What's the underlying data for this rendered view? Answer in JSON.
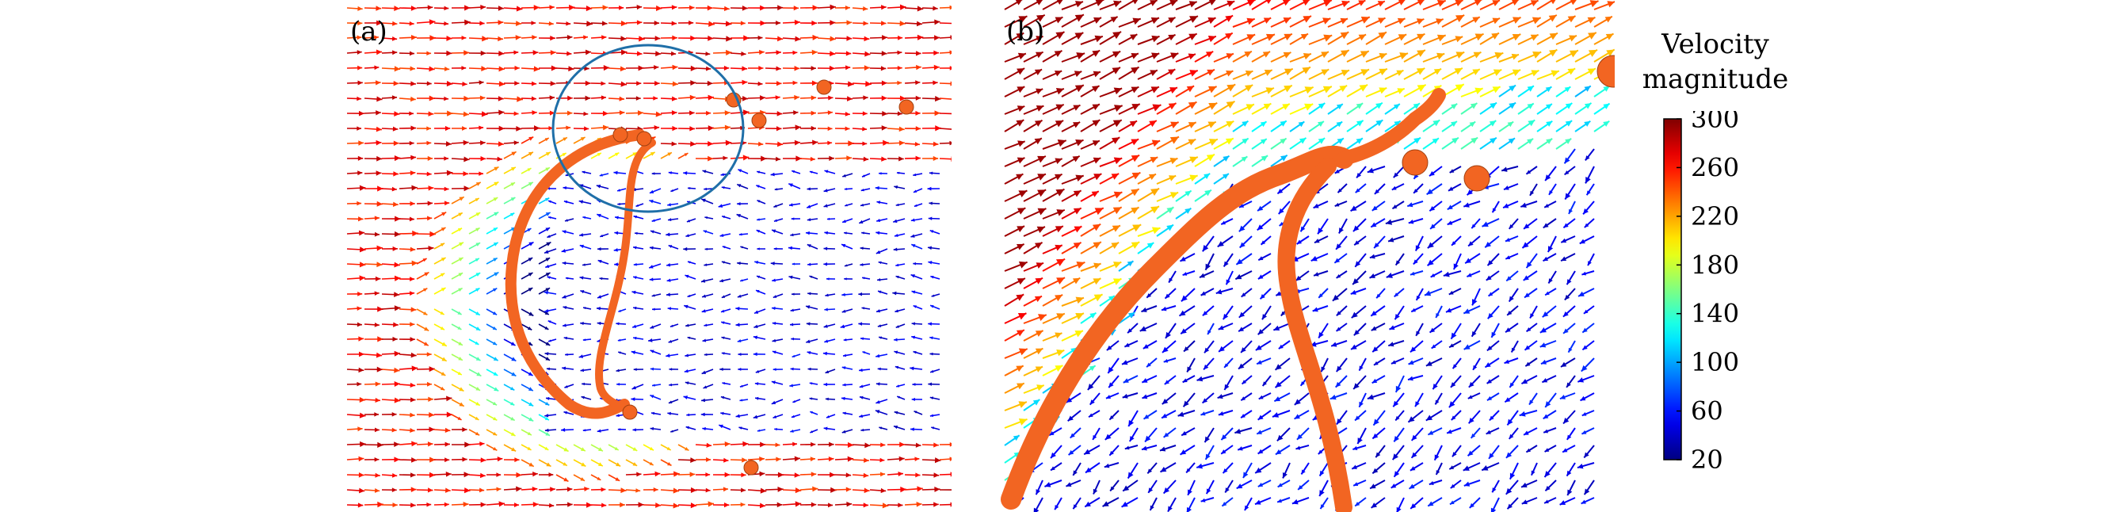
{
  "chart_data": [
    {
      "type": "quiver",
      "panel_label": "(a)",
      "description_of_marks": "velocity vector field around a droplet interface",
      "colormap": "jet",
      "interface_color": "#f26522",
      "highlight_circle_color": "#1f6fa8"
    },
    {
      "type": "quiver",
      "panel_label": "(b)",
      "description_of_marks": "zoomed velocity vector field near the droplet interface",
      "colormap": "jet",
      "interface_color": "#f26522"
    }
  ],
  "colorbar": {
    "title_line1": "Velocity",
    "title_line2": "magnitude",
    "range": [
      20,
      300
    ],
    "ticks": [
      "300",
      "260",
      "220",
      "180",
      "140",
      "100",
      "60",
      "20"
    ],
    "colors": [
      "#d7191c",
      "#f46d43",
      "#fdae61",
      "#fee08b",
      "#a6d96a",
      "#1a9641",
      "#00e5c0",
      "#2b83ba",
      "#0000ff"
    ]
  }
}
